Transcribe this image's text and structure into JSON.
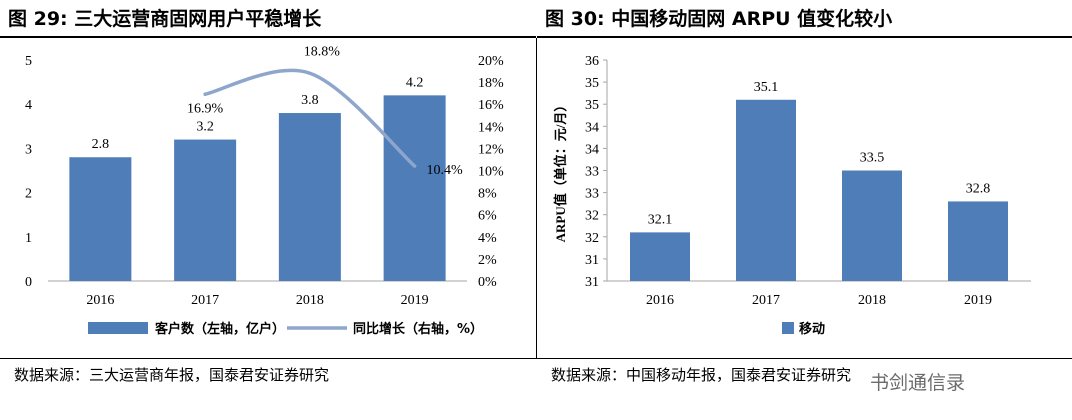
{
  "left": {
    "title": "图 29:  三大运营商固网用户平稳增长",
    "source": "数据来源：三大运营商年报，国泰君安证券研究"
  },
  "right": {
    "title": "图 30:  中国移动固网 ARPU 值变化较小",
    "source": "数据来源：中国移动年报，国泰君安证券研究"
  },
  "watermark": "书剑通信录",
  "chart_data": [
    {
      "type": "bar",
      "categories": [
        "2016",
        "2017",
        "2018",
        "2019"
      ],
      "series": [
        {
          "name": "客户数（左轴，亿户）",
          "type": "bar",
          "axis": "left",
          "values": [
            2.8,
            3.2,
            3.8,
            4.2
          ],
          "labels": [
            "2.8",
            "3.2",
            "3.8",
            "4.2"
          ],
          "color": "#4f7db8"
        },
        {
          "name": "同比增长（右轴，%）",
          "type": "line",
          "axis": "right",
          "x": [
            "2017",
            "2018",
            "2019"
          ],
          "values": [
            16.9,
            18.8,
            10.4
          ],
          "labels": [
            "16.9%",
            "18.8%",
            "10.4%"
          ],
          "color": "#8ea6cc"
        }
      ],
      "y_left": {
        "ylim": [
          0,
          5
        ],
        "ticks": [
          "0",
          "1",
          "2",
          "3",
          "4",
          "5"
        ]
      },
      "y_right": {
        "ylim": [
          0,
          20
        ],
        "ticks": [
          "0%",
          "2%",
          "4%",
          "6%",
          "8%",
          "10%",
          "12%",
          "14%",
          "16%",
          "18%",
          "20%"
        ]
      },
      "legend_position": "bottom"
    },
    {
      "type": "bar",
      "categories": [
        "2016",
        "2017",
        "2018",
        "2019"
      ],
      "series": [
        {
          "name": "移动",
          "values": [
            32.1,
            35.1,
            33.5,
            32.8
          ],
          "labels": [
            "32.1",
            "35.1",
            "33.5",
            "32.8"
          ],
          "color": "#4f7db8"
        }
      ],
      "ylabel": "ARPU值（单位：元/月）",
      "ylim": [
        31,
        36
      ],
      "ticks": [
        "31",
        "31",
        "32",
        "32",
        "33",
        "33",
        "34",
        "34",
        "35",
        "35",
        "36"
      ],
      "legend_position": "bottom"
    }
  ]
}
